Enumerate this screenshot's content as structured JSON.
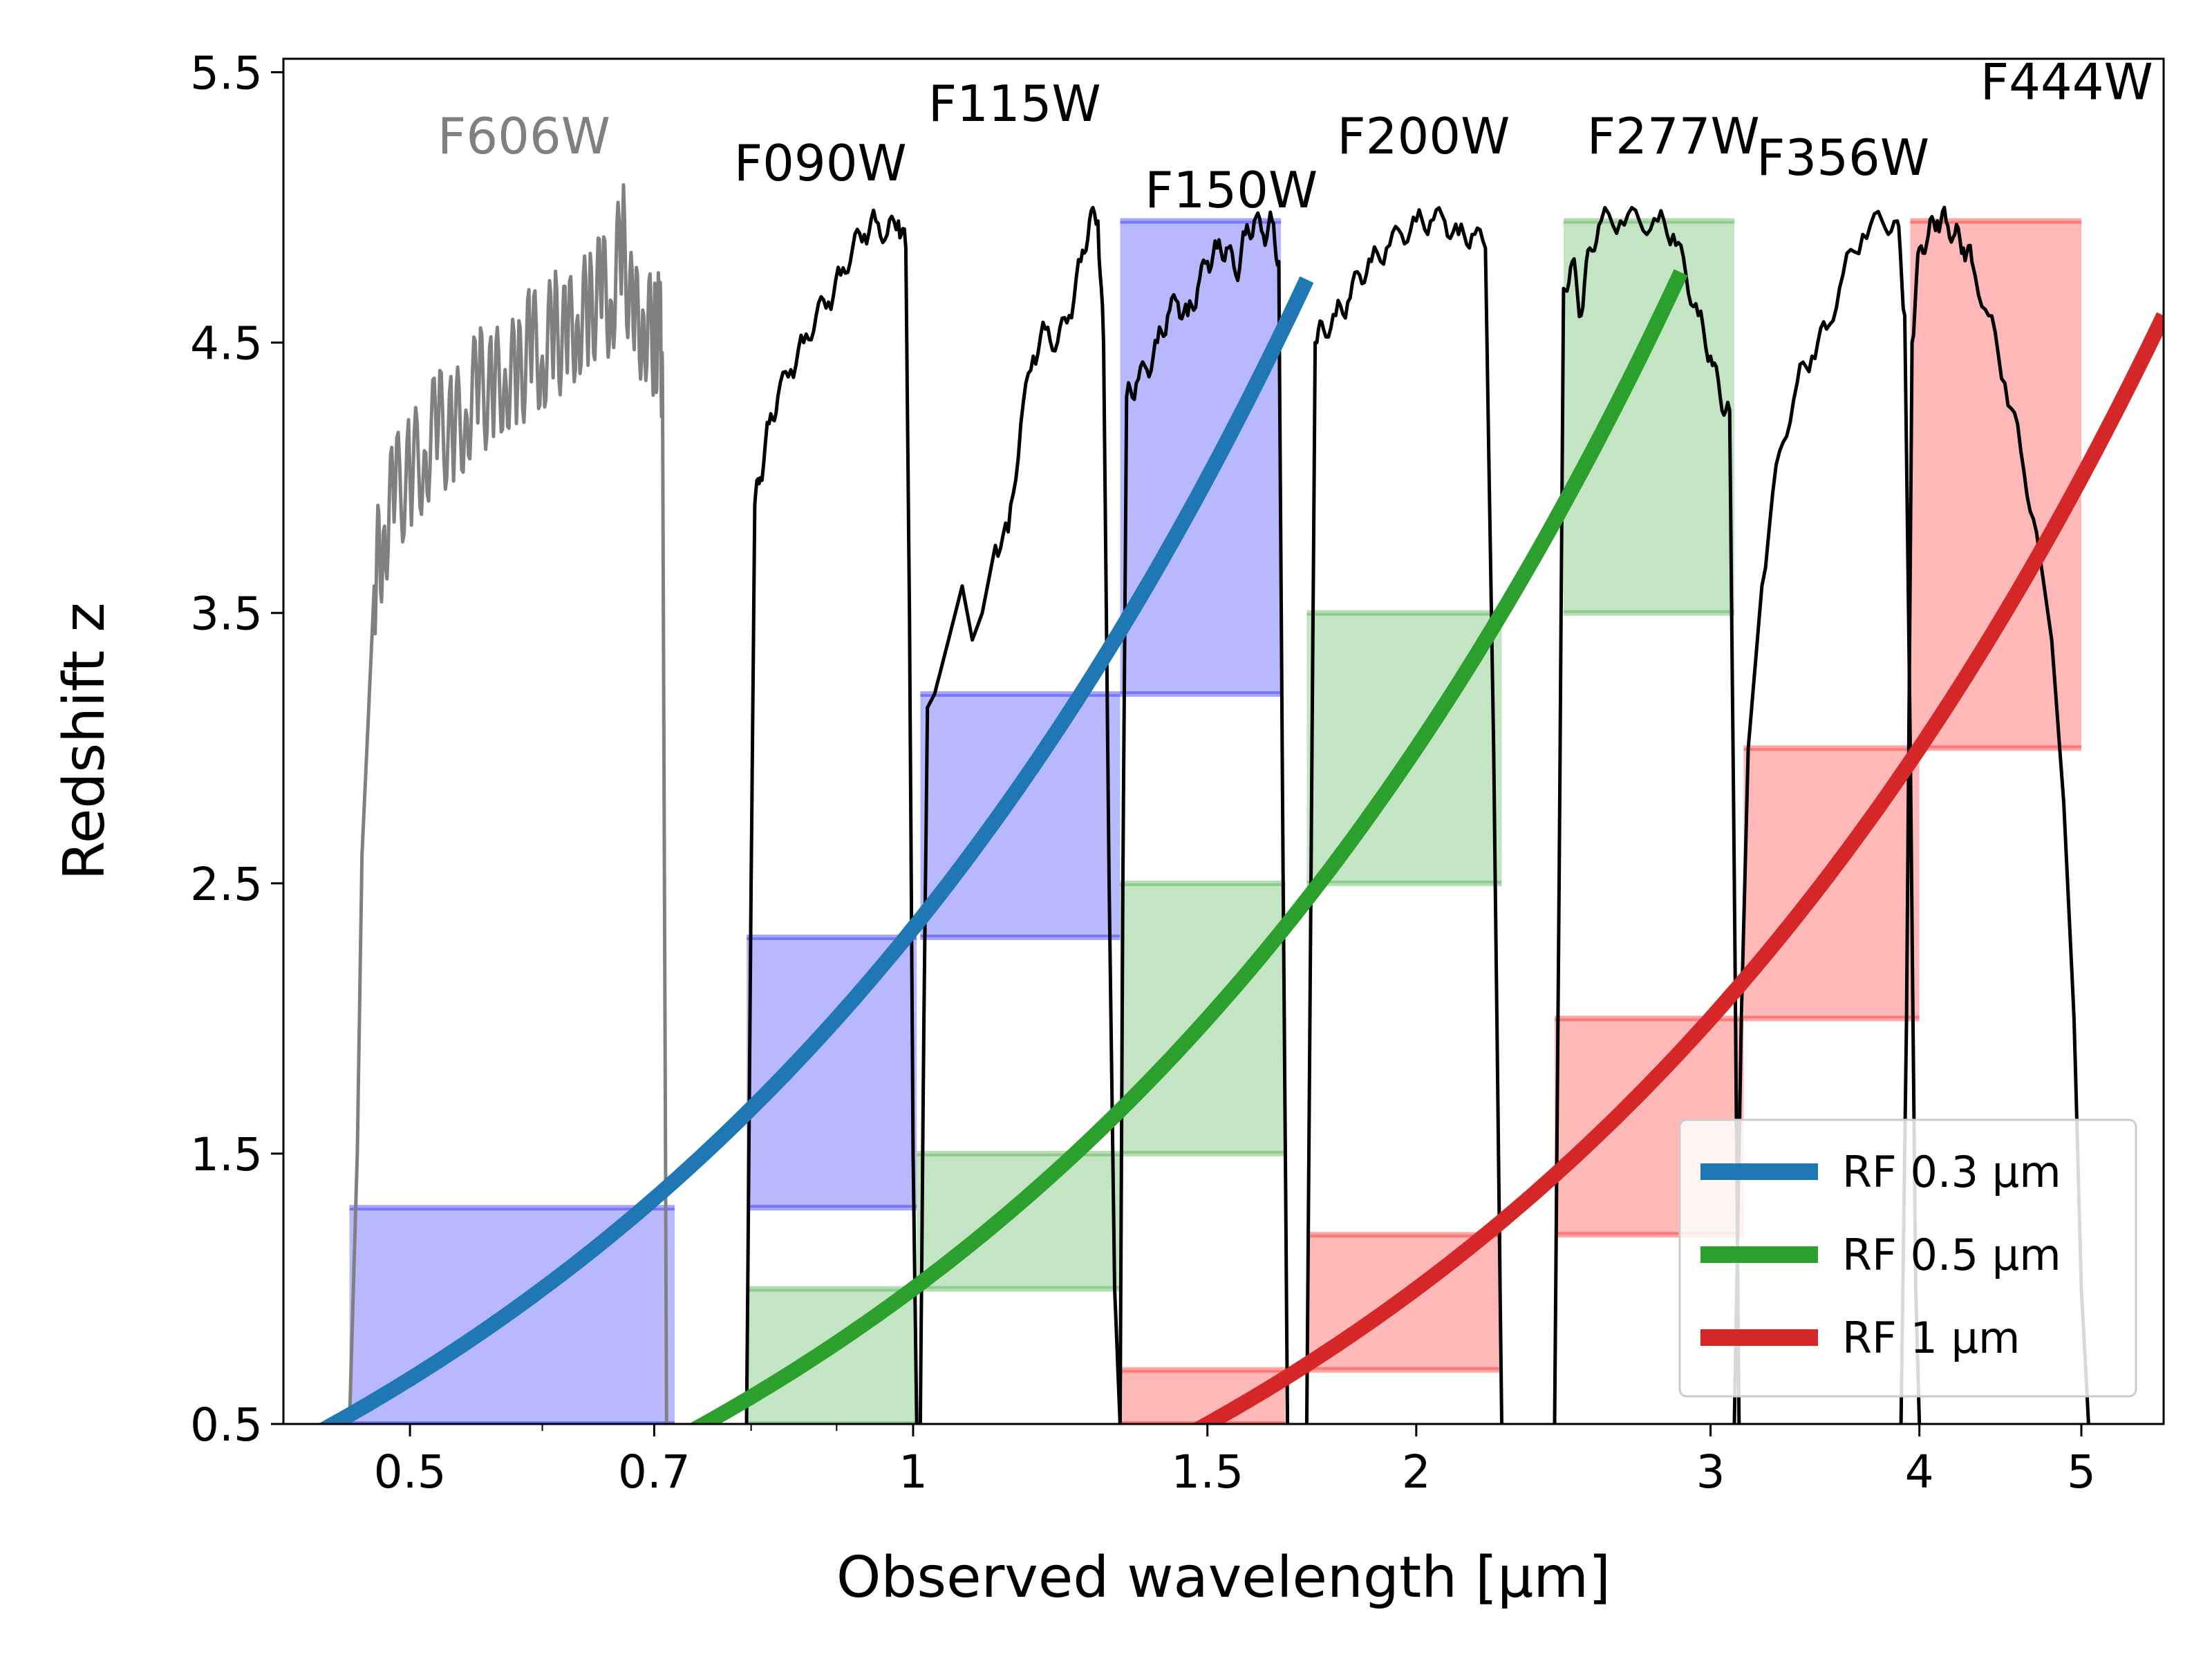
{
  "chart_data": {
    "type": "line",
    "title": "",
    "xlabel": "Observed wavelength [μm]",
    "ylabel": "Redshift z",
    "xscale": "log",
    "xlim": [
      0.42,
      5.6
    ],
    "ylim": [
      0.5,
      5.55
    ],
    "xticks": [
      0.5,
      0.7,
      1,
      1.5,
      2,
      3,
      4,
      5
    ],
    "xtick_labels": [
      "0.5",
      "0.7",
      "1",
      "1.5",
      "2",
      "3",
      "4",
      "5"
    ],
    "yticks": [
      0.5,
      1.5,
      2.5,
      3.5,
      4.5,
      5.5
    ],
    "ytick_labels": [
      "0.5",
      "1.5",
      "2.5",
      "3.5",
      "4.5",
      "5.5"
    ],
    "grid": false,
    "legend": {
      "position": "bottom-right",
      "entries": [
        {
          "label": "RF 0.3 μm",
          "color": "#1f77b4"
        },
        {
          "label": "RF 0.5 μm",
          "color": "#2ca02c"
        },
        {
          "label": "RF 1 μm",
          "color": "#d62728"
        }
      ]
    },
    "series": [
      {
        "name": "RF 0.3 μm",
        "rest_wavelength_um": 0.3,
        "relation": "z = λ/0.3 - 1",
        "color": "#1f77b4",
        "x_range": [
          0.42,
          1.72
        ]
      },
      {
        "name": "RF 0.5 μm",
        "rest_wavelength_um": 0.5,
        "relation": "z = λ/0.5 - 1",
        "color": "#2ca02c",
        "x_range": [
          0.74,
          2.88
        ]
      },
      {
        "name": "RF 1 μm",
        "rest_wavelength_um": 1.0,
        "relation": "z = λ/1 - 1",
        "color": "#d62728",
        "x_range": [
          1.45,
          5.6
        ]
      }
    ],
    "filters": [
      {
        "name": "F606W",
        "label_color": "#808080",
        "curve_color": "#808080",
        "edges_um": [
          0.46,
          0.72
        ],
        "label_pos": [
          0.585,
          5.2
        ],
        "profile": [
          [
            0.46,
            0.5
          ],
          [
            0.465,
            1.5
          ],
          [
            0.468,
            2.6
          ],
          [
            0.472,
            3.1
          ],
          [
            0.476,
            3.6
          ],
          [
            0.482,
            3.8
          ],
          [
            0.49,
            3.95
          ],
          [
            0.5,
            4.0
          ],
          [
            0.51,
            4.1
          ],
          [
            0.52,
            4.2
          ],
          [
            0.53,
            4.15
          ],
          [
            0.54,
            4.25
          ],
          [
            0.55,
            4.35
          ],
          [
            0.56,
            4.3
          ],
          [
            0.57,
            4.4
          ],
          [
            0.58,
            4.35
          ],
          [
            0.59,
            4.5
          ],
          [
            0.6,
            4.45
          ],
          [
            0.61,
            4.55
          ],
          [
            0.62,
            4.5
          ],
          [
            0.63,
            4.6
          ],
          [
            0.64,
            4.6
          ],
          [
            0.65,
            4.7
          ],
          [
            0.66,
            4.65
          ],
          [
            0.67,
            4.9
          ],
          [
            0.68,
            4.55
          ],
          [
            0.69,
            4.6
          ],
          [
            0.7,
            4.5
          ],
          [
            0.705,
            4.55
          ],
          [
            0.708,
            4.4
          ],
          [
            0.712,
            0.5
          ]
        ]
      },
      {
        "name": "F090W",
        "label_color": "#000000",
        "curve_color": "#000000",
        "edges_um": [
          0.795,
          1.005
        ],
        "label_pos": [
          0.88,
          5.1
        ],
        "profile": [
          [
            0.795,
            0.5
          ],
          [
            0.8,
            2.5
          ],
          [
            0.804,
            3.9
          ],
          [
            0.81,
            4.0
          ],
          [
            0.82,
            4.2
          ],
          [
            0.83,
            4.3
          ],
          [
            0.845,
            4.4
          ],
          [
            0.86,
            4.5
          ],
          [
            0.875,
            4.6
          ],
          [
            0.89,
            4.65
          ],
          [
            0.905,
            4.75
          ],
          [
            0.92,
            4.85
          ],
          [
            0.935,
            4.9
          ],
          [
            0.95,
            4.95
          ],
          [
            0.965,
            4.9
          ],
          [
            0.98,
            4.95
          ],
          [
            0.99,
            4.85
          ],
          [
            0.995,
            3.5
          ],
          [
            1.0,
            1.5
          ],
          [
            1.005,
            0.5
          ]
        ]
      },
      {
        "name": "F115W",
        "label_color": "#000000",
        "curve_color": "#000000",
        "edges_um": [
          1.01,
          1.33
        ],
        "label_pos": [
          1.15,
          5.32
        ],
        "profile": [
          [
            1.01,
            0.5
          ],
          [
            1.015,
            2.0
          ],
          [
            1.02,
            3.15
          ],
          [
            1.03,
            3.2
          ],
          [
            1.05,
            3.4
          ],
          [
            1.07,
            3.6
          ],
          [
            1.085,
            3.4
          ],
          [
            1.1,
            3.5
          ],
          [
            1.12,
            3.75
          ],
          [
            1.14,
            3.8
          ],
          [
            1.16,
            4.2
          ],
          [
            1.18,
            4.45
          ],
          [
            1.2,
            4.55
          ],
          [
            1.22,
            4.5
          ],
          [
            1.24,
            4.6
          ],
          [
            1.26,
            4.8
          ],
          [
            1.275,
            4.95
          ],
          [
            1.29,
            4.95
          ],
          [
            1.3,
            4.5
          ],
          [
            1.31,
            2.5
          ],
          [
            1.32,
            1.0
          ],
          [
            1.33,
            0.5
          ]
        ]
      },
      {
        "name": "F150W",
        "label_color": "#000000",
        "curve_color": "#000000",
        "edges_um": [
          1.33,
          1.68
        ],
        "label_pos": [
          1.55,
          5.0
        ],
        "profile": [
          [
            1.33,
            0.5
          ],
          [
            1.335,
            2.5
          ],
          [
            1.342,
            4.3
          ],
          [
            1.36,
            4.35
          ],
          [
            1.38,
            4.4
          ],
          [
            1.4,
            4.5
          ],
          [
            1.42,
            4.6
          ],
          [
            1.44,
            4.65
          ],
          [
            1.46,
            4.6
          ],
          [
            1.48,
            4.7
          ],
          [
            1.5,
            4.8
          ],
          [
            1.52,
            4.85
          ],
          [
            1.54,
            4.85
          ],
          [
            1.56,
            4.75
          ],
          [
            1.58,
            4.9
          ],
          [
            1.6,
            4.95
          ],
          [
            1.62,
            4.9
          ],
          [
            1.64,
            4.95
          ],
          [
            1.655,
            4.8
          ],
          [
            1.665,
            2.5
          ],
          [
            1.675,
            0.5
          ]
        ]
      },
      {
        "name": "F200W",
        "label_color": "#000000",
        "curve_color": "#000000",
        "edges_um": [
          1.72,
          2.28
        ],
        "label_pos": [
          2.02,
          5.2
        ],
        "profile": [
          [
            1.72,
            0.5
          ],
          [
            1.73,
            2.5
          ],
          [
            1.74,
            4.5
          ],
          [
            1.76,
            4.55
          ],
          [
            1.79,
            4.6
          ],
          [
            1.82,
            4.65
          ],
          [
            1.85,
            4.75
          ],
          [
            1.88,
            4.8
          ],
          [
            1.92,
            4.85
          ],
          [
            1.96,
            4.9
          ],
          [
            2.0,
            4.95
          ],
          [
            2.04,
            4.95
          ],
          [
            2.08,
            4.95
          ],
          [
            2.12,
            4.9
          ],
          [
            2.16,
            4.9
          ],
          [
            2.2,
            4.85
          ],
          [
            2.225,
            3.0
          ],
          [
            2.25,
            0.5
          ]
        ]
      },
      {
        "name": "F277W",
        "label_color": "#000000",
        "curve_color": "#000000",
        "edges_um": [
          2.42,
          3.14
        ],
        "label_pos": [
          2.85,
          5.2
        ],
        "profile": [
          [
            2.42,
            0.5
          ],
          [
            2.435,
            2.5
          ],
          [
            2.45,
            4.7
          ],
          [
            2.48,
            4.8
          ],
          [
            2.51,
            4.6
          ],
          [
            2.54,
            4.85
          ],
          [
            2.58,
            4.95
          ],
          [
            2.65,
            4.95
          ],
          [
            2.72,
            4.95
          ],
          [
            2.79,
            4.95
          ],
          [
            2.85,
            4.9
          ],
          [
            2.9,
            4.75
          ],
          [
            2.95,
            4.6
          ],
          [
            3.0,
            4.45
          ],
          [
            3.04,
            4.3
          ],
          [
            3.08,
            4.25
          ],
          [
            3.1,
            2.5
          ],
          [
            3.12,
            0.5
          ]
        ]
      },
      {
        "name": "F356W",
        "label_color": "#000000",
        "curve_color": "#000000",
        "edges_um": [
          3.1,
          4.02
        ],
        "label_pos": [
          3.6,
          5.12
        ],
        "profile": [
          [
            3.1,
            0.5
          ],
          [
            3.13,
            2.0
          ],
          [
            3.16,
            3.0
          ],
          [
            3.22,
            3.6
          ],
          [
            3.3,
            4.1
          ],
          [
            3.38,
            4.35
          ],
          [
            3.45,
            4.45
          ],
          [
            3.52,
            4.55
          ],
          [
            3.6,
            4.75
          ],
          [
            3.7,
            4.9
          ],
          [
            3.8,
            4.95
          ],
          [
            3.88,
            4.95
          ],
          [
            3.92,
            4.6
          ],
          [
            3.95,
            3.0
          ],
          [
            3.98,
            1.0
          ],
          [
            4.0,
            0.5
          ]
        ]
      },
      {
        "name": "F444W",
        "label_color": "#000000",
        "curve_color": "#000000",
        "edges_um": [
          3.9,
          5.1
        ],
        "label_pos": [
          4.9,
          5.4
        ],
        "profile": [
          [
            3.9,
            0.5
          ],
          [
            3.93,
            2.0
          ],
          [
            3.96,
            4.5
          ],
          [
            4.0,
            4.85
          ],
          [
            4.05,
            4.9
          ],
          [
            4.1,
            4.95
          ],
          [
            4.15,
            4.95
          ],
          [
            4.2,
            4.9
          ],
          [
            4.25,
            4.85
          ],
          [
            4.3,
            4.8
          ],
          [
            4.4,
            4.6
          ],
          [
            4.5,
            4.35
          ],
          [
            4.6,
            4.1
          ],
          [
            4.7,
            3.8
          ],
          [
            4.8,
            3.4
          ],
          [
            4.88,
            2.8
          ],
          [
            4.95,
            2.0
          ],
          [
            5.0,
            1.0
          ],
          [
            5.05,
            0.5
          ]
        ]
      }
    ],
    "bands": [
      {
        "series": "RF 0.3 μm",
        "color": "#0000ff",
        "x": [
          0.46,
          0.72
        ],
        "z": [
          0.5,
          1.3
        ]
      },
      {
        "series": "RF 0.3 μm",
        "color": "#0000ff",
        "x": [
          0.795,
          1.005
        ],
        "z": [
          1.3,
          2.3
        ]
      },
      {
        "series": "RF 0.3 μm",
        "color": "#0000ff",
        "x": [
          1.01,
          1.33
        ],
        "z": [
          2.3,
          3.2
        ]
      },
      {
        "series": "RF 0.3 μm",
        "color": "#0000ff",
        "x": [
          1.33,
          1.66
        ],
        "z": [
          3.2,
          4.95
        ]
      },
      {
        "series": "RF 0.5 μm",
        "color": "#2ca02c",
        "x": [
          0.795,
          1.005
        ],
        "z": [
          0.5,
          1.0
        ]
      },
      {
        "series": "RF 0.5 μm",
        "color": "#2ca02c",
        "x": [
          1.005,
          1.33
        ],
        "z": [
          1.0,
          1.5
        ]
      },
      {
        "series": "RF 0.5 μm",
        "color": "#2ca02c",
        "x": [
          1.33,
          1.67
        ],
        "z": [
          1.5,
          2.5
        ]
      },
      {
        "series": "RF 0.5 μm",
        "color": "#2ca02c",
        "x": [
          1.72,
          2.25
        ],
        "z": [
          2.5,
          3.5
        ]
      },
      {
        "series": "RF 0.5 μm",
        "color": "#2ca02c",
        "x": [
          2.45,
          3.1
        ],
        "z": [
          3.5,
          4.95
        ]
      },
      {
        "series": "RF 1 μm",
        "color": "#ff0000",
        "x": [
          1.33,
          1.67
        ],
        "z": [
          0.5,
          0.7
        ]
      },
      {
        "series": "RF 1 μm",
        "color": "#ff0000",
        "x": [
          1.72,
          2.25
        ],
        "z": [
          0.7,
          1.2
        ]
      },
      {
        "series": "RF 1 μm",
        "color": "#ff0000",
        "x": [
          2.42,
          3.14
        ],
        "z": [
          1.2,
          2.0
        ]
      },
      {
        "series": "RF 1 μm",
        "color": "#ff0000",
        "x": [
          3.14,
          4.0
        ],
        "z": [
          2.0,
          3.0
        ]
      },
      {
        "series": "RF 1 μm",
        "color": "#ff0000",
        "x": [
          3.95,
          5.0
        ],
        "z": [
          3.0,
          4.95
        ]
      }
    ]
  }
}
